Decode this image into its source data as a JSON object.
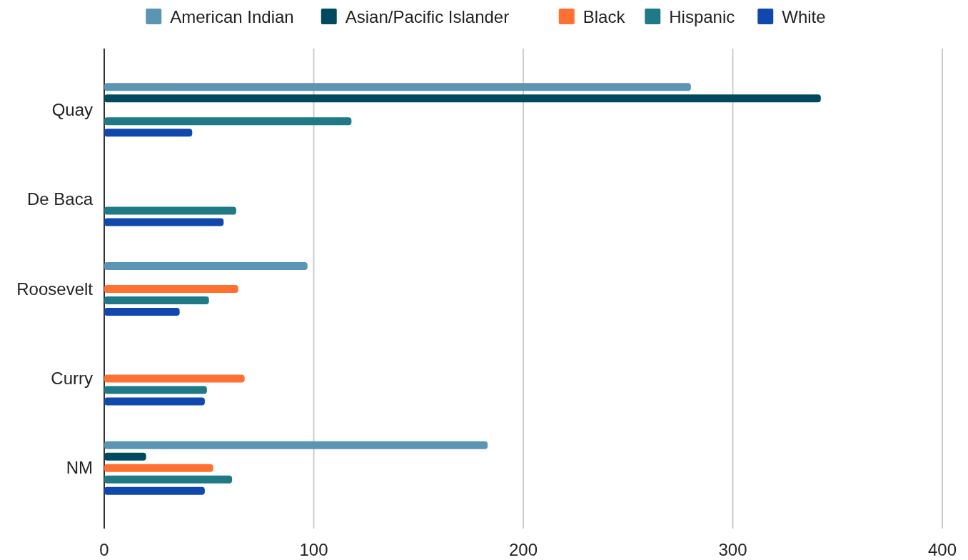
{
  "chart_data": {
    "type": "bar",
    "orientation": "horizontal",
    "categories": [
      "Quay",
      "De Baca",
      "Roosevelt",
      "Curry",
      "NM"
    ],
    "series": [
      {
        "name": "American Indian",
        "color": "#5b95b4",
        "values": [
          280,
          null,
          97,
          null,
          183
        ]
      },
      {
        "name": "Asian/Pacific Islander",
        "color": "#004a61",
        "values": [
          342,
          null,
          null,
          null,
          20
        ]
      },
      {
        "name": "Black",
        "color": "#ff7133",
        "values": [
          null,
          null,
          64,
          67,
          52
        ]
      },
      {
        "name": "Hispanic",
        "color": "#1f7a86",
        "values": [
          118,
          63,
          50,
          49,
          61
        ]
      },
      {
        "name": "White",
        "color": "#1048ae",
        "values": [
          42,
          57,
          36,
          48,
          48
        ]
      }
    ],
    "xlim": [
      0,
      400
    ],
    "xticks": [
      0,
      100,
      200,
      300,
      400
    ],
    "grid": "x",
    "legend": "top"
  }
}
